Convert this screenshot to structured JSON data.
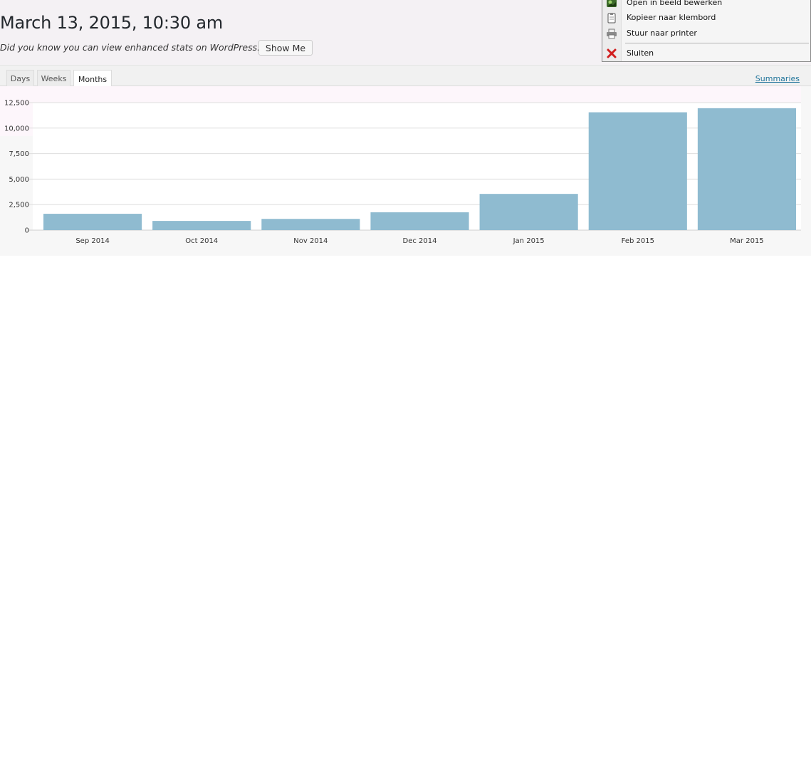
{
  "header": {
    "title": "March 13, 2015, 10:30 am",
    "promo_text": "Did you know you can view enhanced stats on WordPress.com?",
    "show_me_label": "Show Me"
  },
  "tabs": [
    {
      "label": "Days",
      "active": false
    },
    {
      "label": "Weeks",
      "active": false
    },
    {
      "label": "Months",
      "active": true
    }
  ],
  "summaries_link": "Summaries",
  "context_menu": {
    "items": [
      {
        "label": "Open in beeld bewerken",
        "icon": "image-edit-icon"
      },
      {
        "label": "Kopieer naar klembord",
        "icon": "clipboard-icon"
      },
      {
        "label": "Stuur naar printer",
        "icon": "printer-icon"
      },
      {
        "label": "Sluiten",
        "icon": "close-icon"
      }
    ]
  },
  "colors": {
    "bar": "#8fbbd0",
    "link": "#21759b",
    "close": "#d11f1f"
  },
  "chart_data": {
    "type": "bar",
    "categories": [
      "Sep 2014",
      "Oct 2014",
      "Nov 2014",
      "Dec 2014",
      "Jan 2015",
      "Feb 2015",
      "Mar 2015"
    ],
    "values": [
      1600,
      900,
      1100,
      1750,
      3550,
      11550,
      11950
    ],
    "yticks": [
      "0",
      "2,500",
      "5,000",
      "7,500",
      "10,000",
      "12,500"
    ],
    "ylim": [
      0,
      12500
    ],
    "grid": true
  }
}
